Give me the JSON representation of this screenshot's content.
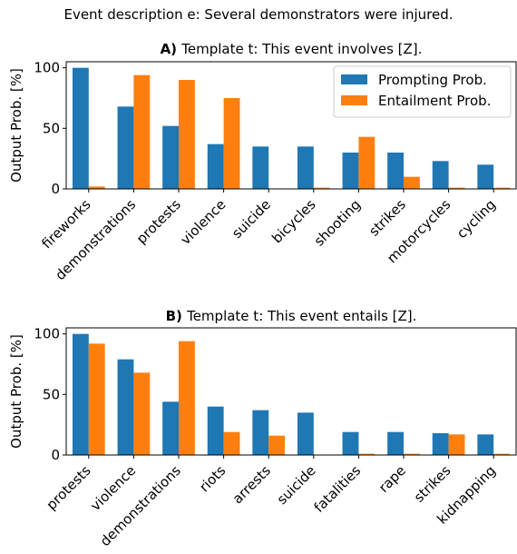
{
  "suptitle": "Event description e: Several demonstrators were injured.",
  "colors": {
    "prompting": "#1f77b4",
    "entailment": "#ff7f0e"
  },
  "chart_data": [
    {
      "type": "bar",
      "panel_letter": "A)",
      "title": "Template t: This event involves [Z].",
      "xlabel": "",
      "ylabel": "Output Prob. [%]",
      "ylim": [
        0,
        105
      ],
      "yticks": [
        0,
        50,
        100
      ],
      "grid": false,
      "legend": "top-right",
      "categories": [
        "fireworks",
        "demonstrations",
        "protests",
        "violence",
        "suicide",
        "bicycles",
        "shooting",
        "strikes",
        "motorcycles",
        "cycling"
      ],
      "series": [
        {
          "name": "Prompting Prob.",
          "values": [
            100,
            68,
            52,
            37,
            35,
            35,
            30,
            30,
            23,
            20
          ]
        },
        {
          "name": "Entailment Prob.",
          "values": [
            2,
            94,
            90,
            75,
            0,
            1,
            43,
            10,
            1,
            1
          ]
        }
      ]
    },
    {
      "type": "bar",
      "panel_letter": "B)",
      "title": "Template t: This event entails [Z].",
      "xlabel": "",
      "ylabel": "Output Prob. [%]",
      "ylim": [
        0,
        105
      ],
      "yticks": [
        0,
        50,
        100
      ],
      "grid": false,
      "categories": [
        "protests",
        "violence",
        "demonstrations",
        "riots",
        "arrests",
        "suicide",
        "fatalities",
        "rape",
        "strikes",
        "kidnapping"
      ],
      "series": [
        {
          "name": "Prompting Prob.",
          "values": [
            100,
            79,
            44,
            40,
            37,
            35,
            19,
            19,
            18,
            17
          ]
        },
        {
          "name": "Entailment Prob.",
          "values": [
            92,
            68,
            94,
            19,
            16,
            0,
            1,
            1,
            17,
            1
          ]
        }
      ]
    }
  ]
}
